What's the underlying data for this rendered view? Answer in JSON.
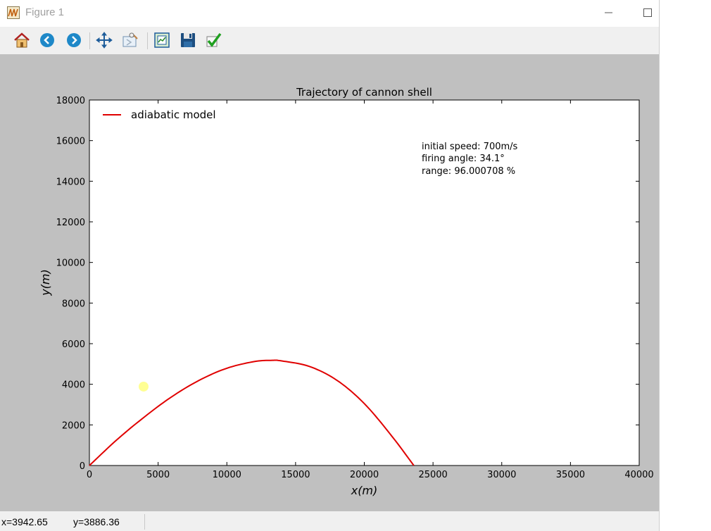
{
  "window": {
    "title": "Figure 1"
  },
  "toolbar": {
    "buttons": [
      {
        "name": "home-button",
        "icon": "home-icon"
      },
      {
        "name": "back-button",
        "icon": "back-arrow-icon"
      },
      {
        "name": "forward-button",
        "icon": "forward-arrow-icon"
      },
      {
        "name": "pan-button",
        "icon": "pan-arrows-icon"
      },
      {
        "name": "zoom-button",
        "icon": "zoom-rect-icon"
      },
      {
        "name": "subplots-button",
        "icon": "subplots-icon"
      },
      {
        "name": "save-button",
        "icon": "floppy-disk-icon"
      },
      {
        "name": "edit-button",
        "icon": "checkmark-icon"
      }
    ]
  },
  "status": {
    "x": "x=3942.65",
    "y": "y=3886.36"
  },
  "colors": {
    "line": "#e00000",
    "cursor": "#ffff80",
    "canvas_bg": "#c0c0c0"
  },
  "chart_data": {
    "type": "line",
    "title": "Trajectory of cannon shell",
    "xlabel": "x(m)",
    "ylabel": "y(m)",
    "xlim": [
      0,
      40000
    ],
    "ylim": [
      0,
      18000
    ],
    "xticks": [
      0,
      5000,
      10000,
      15000,
      20000,
      25000,
      30000,
      35000,
      40000
    ],
    "yticks": [
      0,
      2000,
      4000,
      6000,
      8000,
      10000,
      12000,
      14000,
      16000,
      18000
    ],
    "legend_position": "top-left",
    "series": [
      {
        "name": "adiabatic model",
        "color": "#e00000",
        "x": [
          0,
          2000,
          4000,
          6000,
          8000,
          10000,
          12000,
          13300,
          14000,
          16000,
          18000,
          20000,
          22000,
          23600
        ],
        "y": [
          0,
          1270,
          2390,
          3390,
          4200,
          4790,
          5120,
          5180,
          5150,
          4880,
          4200,
          3050,
          1450,
          0
        ]
      }
    ],
    "annotations": [
      "initial speed: 700m/s",
      "firing angle: 34.1°",
      "range: 96.000708 %"
    ],
    "cursor_point": {
      "x": 3942.65,
      "y": 3886.36
    }
  }
}
